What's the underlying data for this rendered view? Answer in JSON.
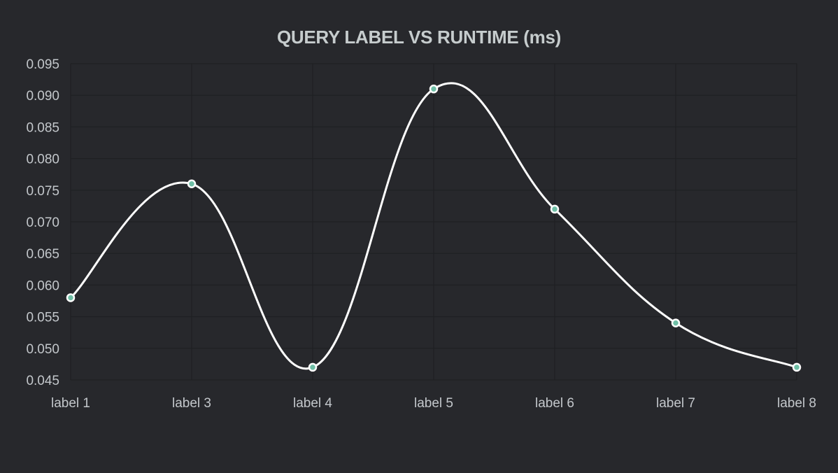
{
  "chart_data": {
    "type": "line",
    "title": "QUERY LABEL VS RUNTIME (ms)",
    "xlabel": "",
    "ylabel": "",
    "categories": [
      "label 1",
      "label 3",
      "label 4",
      "label 5",
      "label 6",
      "label 7",
      "label 8"
    ],
    "series": [
      {
        "values": [
          0.058,
          0.076,
          0.047,
          0.091,
          0.072,
          0.054,
          0.047
        ]
      }
    ],
    "ylim": [
      0.045,
      0.095
    ],
    "yticks": [
      "0.045",
      "0.050",
      "0.055",
      "0.060",
      "0.065",
      "0.070",
      "0.075",
      "0.080",
      "0.085",
      "0.090",
      "0.095"
    ],
    "grid": true,
    "legend": "none",
    "line_style": "smooth",
    "colors": {
      "background": "#27282c",
      "line": "#ffffff",
      "point_fill": "#6fbfa6",
      "point_stroke": "#ffffff",
      "grid": "#1f2023",
      "text": "#c3c7cb",
      "title": "#c6cccd"
    }
  }
}
